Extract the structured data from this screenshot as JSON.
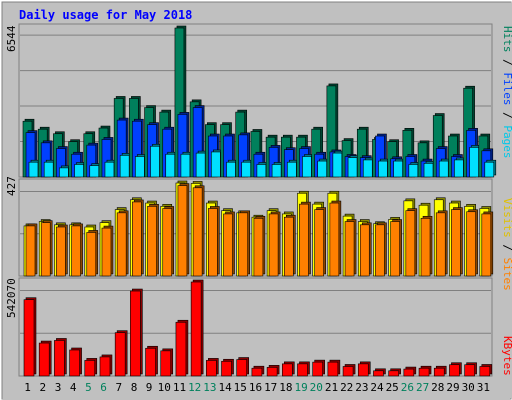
{
  "title": "Daily usage for May 2018",
  "colors": {
    "background": "#C0C0C0",
    "title": "#0000FF",
    "hits": "#00805C",
    "files": "#0040FF",
    "pages": "#00E0FF",
    "visits": "#FFFF00",
    "sites": "#FF8000",
    "kbytes": "#FF0000",
    "weekend_label": "#00805C",
    "weekday_label": "#000000",
    "grid": "#808080"
  },
  "legend_top": {
    "pages": "Pages",
    "files": "Files",
    "hits": "Hits",
    "sep": " / "
  },
  "legend_mid": {
    "sites": "Sites",
    "visits": "Visits",
    "sep": " / "
  },
  "legend_bottom": {
    "kbytes": "KBytes"
  },
  "max_labels": {
    "top": "6544",
    "mid": "427",
    "bottom": "542070"
  },
  "days": [
    "1",
    "2",
    "3",
    "4",
    "5",
    "6",
    "7",
    "8",
    "9",
    "10",
    "11",
    "12",
    "13",
    "14",
    "15",
    "16",
    "17",
    "18",
    "19",
    "20",
    "21",
    "22",
    "23",
    "24",
    "25",
    "26",
    "27",
    "28",
    "29",
    "30",
    "31"
  ],
  "weekend_days": [
    "5",
    "6",
    "12",
    "13",
    "19",
    "20",
    "26",
    "27"
  ],
  "chart_data": [
    {
      "type": "bar",
      "name": "hits-files-pages",
      "ylim": [
        0,
        6544
      ],
      "series": [
        {
          "name": "Hits",
          "values": [
            2450,
            2100,
            1900,
            1550,
            1900,
            2150,
            3450,
            3450,
            3050,
            2850,
            6544,
            3300,
            2300,
            2300,
            2850,
            2000,
            1750,
            1750,
            1750,
            2100,
            4000,
            1600,
            2100,
            1650,
            1550,
            2050,
            1500,
            2700,
            1800,
            3900,
            1800
          ]
        },
        {
          "name": "Files",
          "values": [
            1950,
            1500,
            1250,
            1000,
            1400,
            1650,
            2500,
            2450,
            2300,
            2100,
            2750,
            3050,
            1800,
            1800,
            1850,
            1000,
            1300,
            1200,
            1250,
            1000,
            1100,
            900,
            850,
            1800,
            800,
            900,
            700,
            1250,
            900,
            2050,
            1150
          ]
        },
        {
          "name": "Pages",
          "values": [
            650,
            650,
            400,
            550,
            500,
            650,
            950,
            900,
            1350,
            1000,
            1000,
            1050,
            1100,
            650,
            650,
            550,
            550,
            650,
            900,
            700,
            1050,
            850,
            750,
            700,
            700,
            550,
            600,
            700,
            750,
            1300,
            650
          ]
        }
      ]
    },
    {
      "type": "bar",
      "name": "visits-sites",
      "ylim": [
        0,
        427
      ],
      "series": [
        {
          "name": "Visits",
          "values": [
            230,
            250,
            235,
            235,
            225,
            245,
            305,
            350,
            335,
            320,
            427,
            425,
            335,
            300,
            290,
            270,
            300,
            285,
            380,
            330,
            380,
            275,
            250,
            240,
            260,
            345,
            325,
            350,
            335,
            320,
            310
          ]
        },
        {
          "name": "Sites",
          "values": [
            230,
            245,
            225,
            230,
            200,
            220,
            290,
            340,
            320,
            310,
            415,
            405,
            310,
            285,
            290,
            265,
            285,
            270,
            330,
            305,
            335,
            250,
            235,
            235,
            250,
            300,
            265,
            290,
            305,
            295,
            285
          ]
        }
      ]
    },
    {
      "type": "bar",
      "name": "kbytes",
      "ylim": [
        0,
        542070
      ],
      "series": [
        {
          "name": "KBytes",
          "values": [
            440000,
            190000,
            205000,
            150000,
            90000,
            110000,
            250000,
            490000,
            160000,
            145000,
            310000,
            542070,
            90000,
            85000,
            95000,
            45000,
            50000,
            70000,
            70000,
            80000,
            80000,
            55000,
            70000,
            30000,
            30000,
            40000,
            45000,
            45000,
            65000,
            65000,
            55000
          ]
        }
      ]
    }
  ]
}
